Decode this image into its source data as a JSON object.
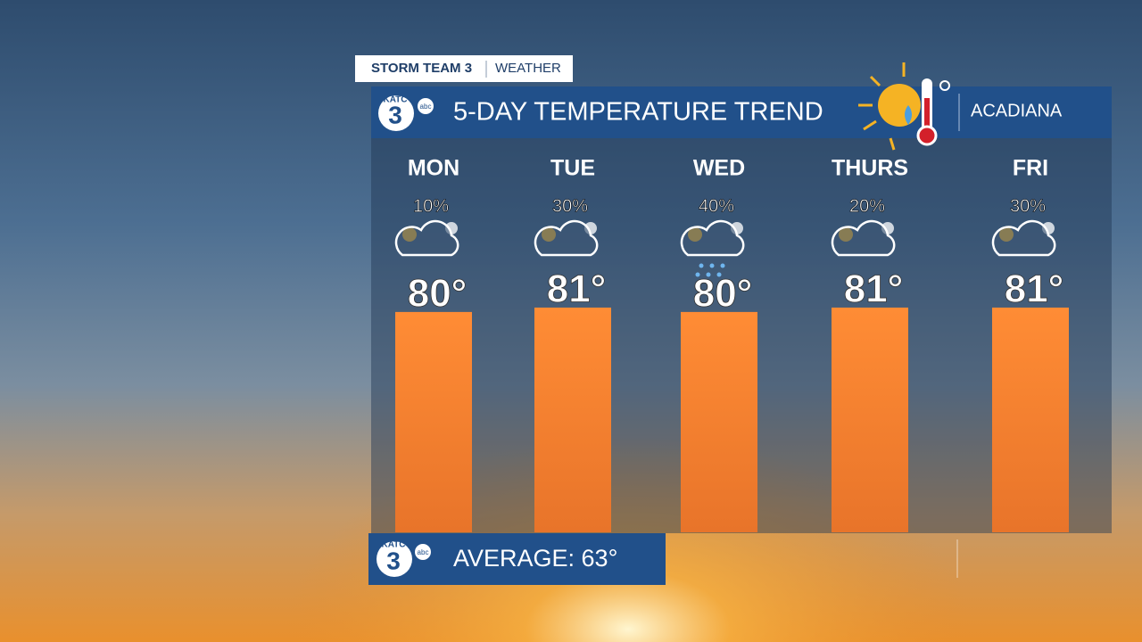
{
  "brand": {
    "tag": "STORM TEAM 3",
    "section": "WEATHER",
    "logo": "KATC",
    "network": "abc",
    "region": "ACADIANA"
  },
  "footer": "AVERAGE: 63°",
  "chart_data": {
    "type": "bar",
    "title": "5-DAY TEMPERATURE TREND",
    "categories": [
      "MON",
      "TUE",
      "WED",
      "THURS",
      "FRI"
    ],
    "values": [
      80,
      81,
      80,
      81,
      81
    ],
    "value_labels": [
      "80°",
      "81°",
      "80°",
      "81°",
      "81°"
    ],
    "color": "#f98a35",
    "ylim": [
      30,
      82
    ],
    "precipitation": {
      "values": [
        10,
        30,
        40,
        20,
        30
      ],
      "value_labels": [
        "10%",
        "30%",
        "40%",
        "20%",
        "30%"
      ]
    }
  }
}
